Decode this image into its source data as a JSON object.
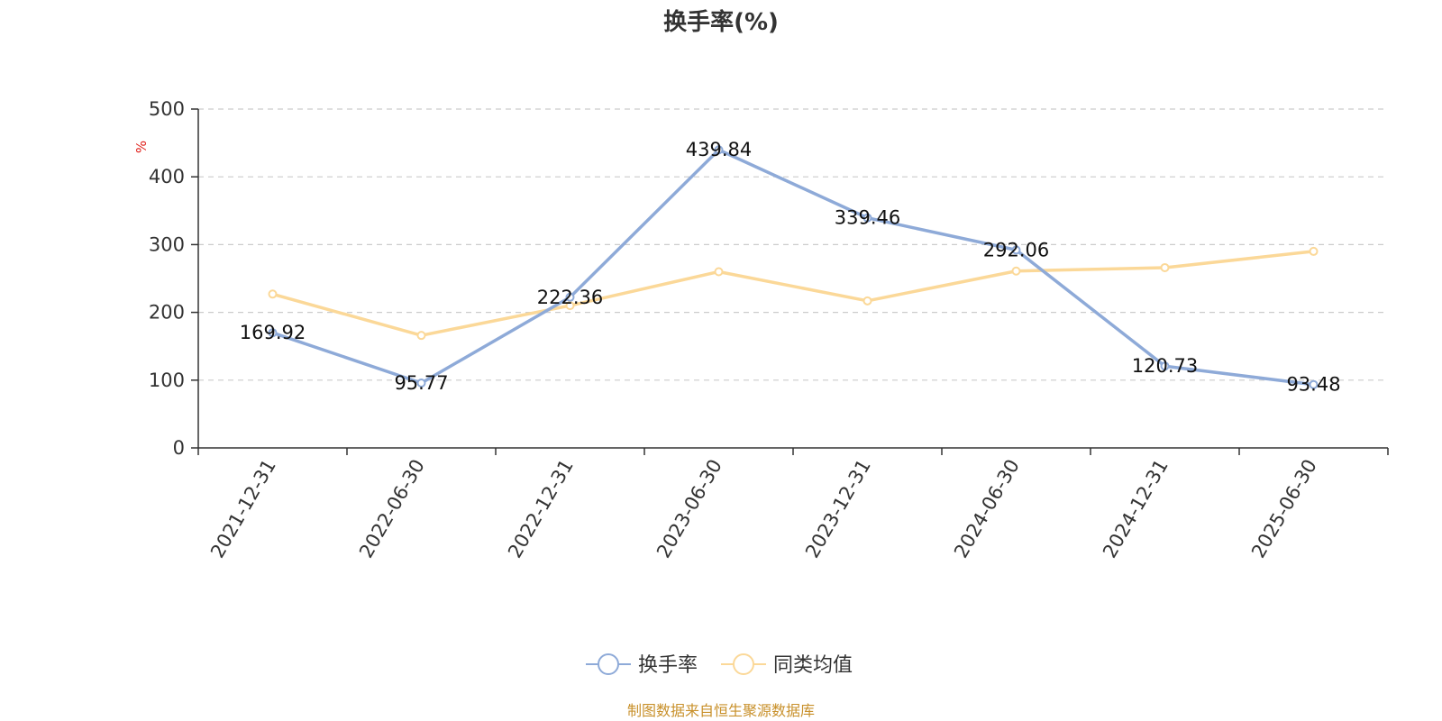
{
  "chart_data": {
    "type": "line",
    "title": "换手率(%)",
    "ylabel": "%",
    "xlabel": "",
    "ylim": [
      0,
      500
    ],
    "yticks": [
      0,
      100,
      200,
      300,
      400,
      500
    ],
    "grid": true,
    "legend_position": "bottom-center",
    "categories": [
      "2021-12-31",
      "2022-06-30",
      "2022-12-31",
      "2023-06-30",
      "2023-12-31",
      "2024-06-30",
      "2024-12-31",
      "2025-06-30"
    ],
    "series": [
      {
        "name": "换手率",
        "color": "#8eaad8",
        "values": [
          169.92,
          95.77,
          222.36,
          439.84,
          339.46,
          292.06,
          120.73,
          93.48
        ],
        "data_labels": [
          "169.92",
          "95.77",
          "222.36",
          "439.84",
          "339.46",
          "292.06",
          "120.73",
          "93.48"
        ]
      },
      {
        "name": "同类均值",
        "color": "#fbd898",
        "values": [
          227,
          166,
          210,
          260,
          217,
          261,
          266,
          290
        ]
      }
    ],
    "source": "制图数据来自恒生聚源数据库"
  }
}
